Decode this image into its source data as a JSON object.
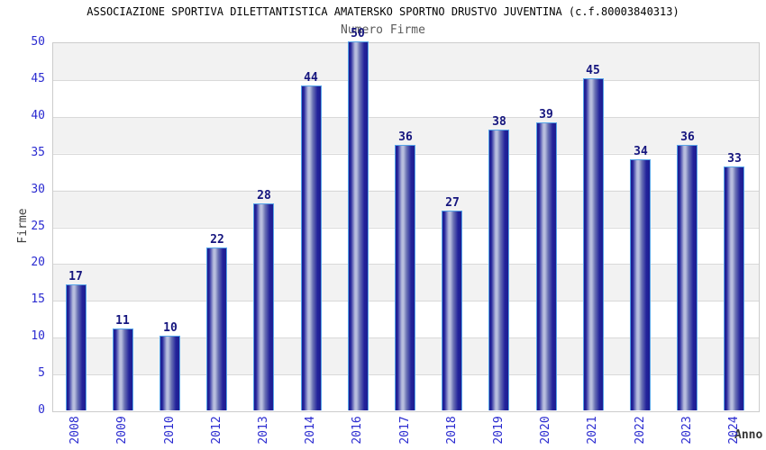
{
  "chart_data": {
    "type": "bar",
    "title": "ASSOCIAZIONE SPORTIVA DILETTANTISTICA AMATERSKO SPORTNO DRUSTVO JUVENTINA (c.f.80003840313)",
    "subtitle": "Numero Firme",
    "xlabel": "Anno",
    "ylabel": "Firme",
    "categories": [
      "2008",
      "2009",
      "2010",
      "2012",
      "2013",
      "2014",
      "2016",
      "2017",
      "2018",
      "2019",
      "2020",
      "2021",
      "2022",
      "2023",
      "2024"
    ],
    "values": [
      17,
      11,
      10,
      22,
      28,
      44,
      50,
      36,
      27,
      38,
      39,
      45,
      34,
      36,
      33
    ],
    "ylim": [
      0,
      50
    ],
    "ytick_step": 5,
    "grid": "horizontal-bands-alternating",
    "legend": "none",
    "colors": {
      "background": "#ffffff",
      "band_gray": "#f2f2f2",
      "band_white": "#ffffff",
      "grid_line": "#d9d9d9",
      "plot_border": "#cccccc",
      "bar_dark": "#23239b",
      "bar_edge_dark": "#1d1d90",
      "bar_light": "#b7bddd",
      "bar_mid": "#6a72b4",
      "bar_border_blue": "#56a4e8",
      "tick_label_blue": "#2b2bd0",
      "value_label_navy": "#15157e",
      "title_color": "#000000",
      "subtitle_color": "#5a5a5a",
      "axis_label_color": "#3c3c3c"
    }
  }
}
